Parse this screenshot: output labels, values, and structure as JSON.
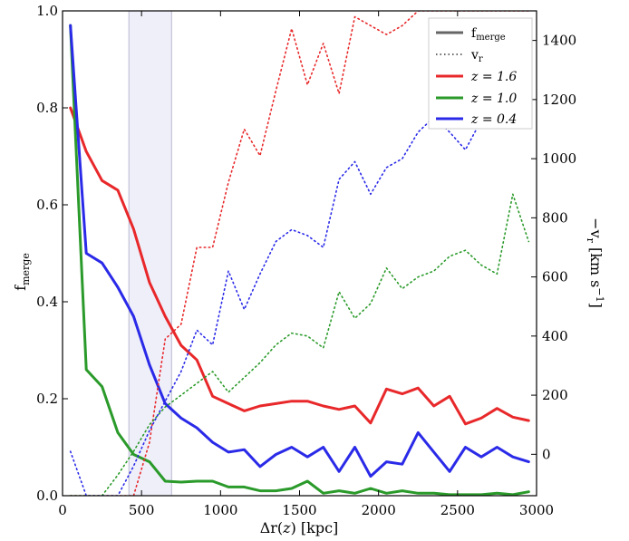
{
  "chart_data": {
    "type": "line",
    "xlabel": "Δr(z) [kpc]",
    "ylabel_left": "f_merge",
    "ylabel_right": "−v_r [km s⁻¹]",
    "xlim": [
      0,
      3000
    ],
    "ylim_left": [
      0,
      1.0
    ],
    "ylim_right": [
      -140,
      1500
    ],
    "x_ticks": [
      0,
      500,
      1000,
      1500,
      2000,
      2500,
      3000
    ],
    "y_ticks_left": [
      0.0,
      0.2,
      0.4,
      0.6,
      0.8,
      1.0
    ],
    "y_ticks_left_labels": [
      "0.0",
      "0.2",
      "0.4",
      "0.6",
      "0.8",
      "1.0"
    ],
    "y_ticks_right": [
      0,
      200,
      400,
      600,
      800,
      1000,
      1200,
      1400
    ],
    "shaded_band_x": [
      420,
      690
    ],
    "grid": false,
    "legend_position": "top-right",
    "legend": [
      {
        "label": "f_merge",
        "style": "solid",
        "color": "#666666"
      },
      {
        "label": "v_r",
        "style": "dotted",
        "color": "#333333"
      },
      {
        "label": "z = 1.6",
        "style": "solid",
        "color": "#e8282a"
      },
      {
        "label": "z = 1.0",
        "style": "solid",
        "color": "#2a9a2a"
      },
      {
        "label": "z = 0.4",
        "style": "solid",
        "color": "#2a2ae8"
      }
    ],
    "x": [
      50,
      150,
      250,
      350,
      450,
      550,
      650,
      750,
      850,
      950,
      1050,
      1150,
      1250,
      1350,
      1450,
      1550,
      1650,
      1750,
      1850,
      1950,
      2050,
      2150,
      2250,
      2350,
      2450,
      2550,
      2650,
      2750,
      2850,
      2950
    ],
    "series": [
      {
        "name": "z = 1.6",
        "kind": "f_merge",
        "axis": "left",
        "color": "#e8282a",
        "values": [
          0.8,
          0.71,
          0.65,
          0.63,
          0.55,
          0.44,
          0.37,
          0.31,
          0.28,
          0.205,
          0.19,
          0.175,
          0.185,
          0.19,
          0.195,
          0.195,
          0.185,
          0.178,
          0.185,
          0.15,
          0.22,
          0.21,
          0.222,
          0.185,
          0.205,
          0.148,
          0.16,
          0.18,
          0.162,
          0.155
        ]
      },
      {
        "name": "z = 1.0",
        "kind": "f_merge",
        "axis": "left",
        "color": "#2a9a2a",
        "values": [
          0.97,
          0.26,
          0.225,
          0.13,
          0.085,
          0.07,
          0.03,
          0.028,
          0.03,
          0.03,
          0.018,
          0.018,
          0.01,
          0.01,
          0.015,
          0.03,
          0.005,
          0.01,
          0.005,
          0.015,
          0.005,
          0.01,
          0.005,
          0.005,
          0.002,
          0.002,
          0.002,
          0.005,
          0.002,
          0.008
        ]
      },
      {
        "name": "z = 0.4",
        "kind": "f_merge",
        "axis": "left",
        "color": "#2a2ae8",
        "values": [
          0.97,
          0.5,
          0.48,
          0.43,
          0.37,
          0.27,
          0.19,
          0.16,
          0.14,
          0.11,
          0.09,
          0.095,
          0.06,
          0.085,
          0.1,
          0.08,
          0.1,
          0.05,
          0.1,
          0.04,
          0.07,
          0.065,
          0.13,
          0.09,
          0.05,
          0.1,
          0.08,
          0.1,
          0.08,
          0.07
        ]
      },
      {
        "name": "z = 1.6",
        "kind": "v_r",
        "axis": "right",
        "color": "#e8282a",
        "values": [
          -140,
          -140,
          -140,
          -140,
          -140,
          40,
          390,
          440,
          700,
          700,
          920,
          1100,
          1010,
          1230,
          1440,
          1250,
          1390,
          1220,
          1480,
          1450,
          1420,
          1450,
          1500,
          1500,
          1500,
          1500,
          1500,
          1500,
          1500,
          1500
        ]
      },
      {
        "name": "z = 1.0",
        "kind": "v_r",
        "axis": "right",
        "color": "#2a9a2a",
        "values": [
          -140,
          -140,
          -140,
          -70,
          10,
          100,
          160,
          200,
          240,
          280,
          210,
          260,
          310,
          370,
          410,
          400,
          360,
          550,
          460,
          510,
          630,
          560,
          600,
          620,
          670,
          690,
          640,
          610,
          880,
          720
        ]
      },
      {
        "name": "z = 0.4",
        "kind": "v_r",
        "axis": "right",
        "color": "#2a2ae8",
        "values": [
          10,
          -140,
          -140,
          -140,
          -40,
          80,
          180,
          280,
          420,
          370,
          620,
          490,
          610,
          720,
          760,
          740,
          700,
          930,
          990,
          880,
          970,
          1000,
          1090,
          1140,
          1090,
          1030,
          1130,
          1200,
          1300,
          1320
        ]
      }
    ]
  }
}
